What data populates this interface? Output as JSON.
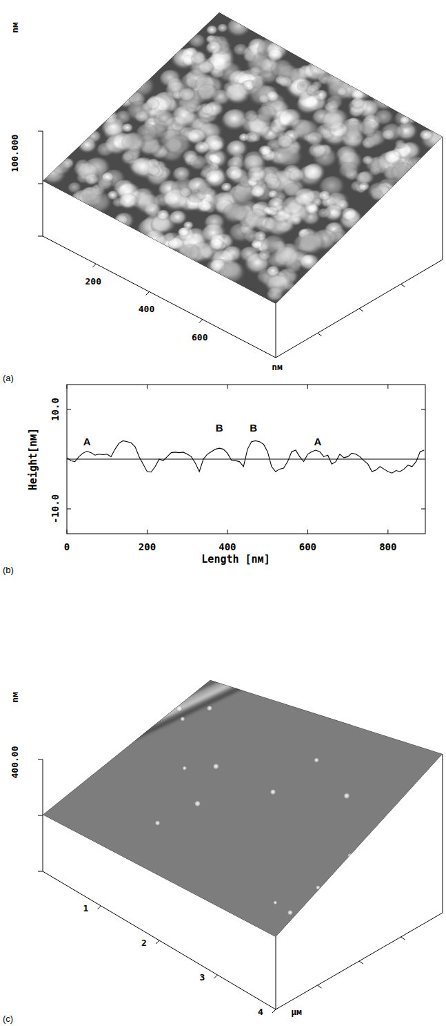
{
  "figure": {
    "panel_a": {
      "letter": "(a)",
      "z_label": "100.000",
      "z_unit": "nм",
      "x_unit": "nм",
      "x_range": [
        0,
        875
      ],
      "x_ticks": [
        200,
        400,
        600
      ]
    },
    "panel_b": {
      "letter": "(b)"
    },
    "panel_c": {
      "letter": "(c)",
      "z_label": "400.00",
      "z_unit": "nм",
      "x_unit": "μм",
      "x_range": [
        0,
        4
      ],
      "x_ticks": [
        1,
        2,
        3,
        4
      ]
    }
  },
  "chart_data": {
    "type": "line",
    "x_label": "Length [nм]",
    "y_label": "Height[nм]",
    "x": [
      0,
      10,
      20,
      30,
      40,
      50,
      60,
      70,
      80,
      90,
      100,
      110,
      120,
      130,
      140,
      150,
      160,
      170,
      180,
      190,
      200,
      210,
      220,
      230,
      240,
      250,
      260,
      270,
      280,
      290,
      300,
      310,
      320,
      330,
      340,
      350,
      360,
      370,
      380,
      390,
      400,
      410,
      420,
      430,
      440,
      450,
      460,
      470,
      480,
      490,
      500,
      510,
      520,
      530,
      540,
      550,
      560,
      570,
      580,
      590,
      600,
      610,
      620,
      630,
      640,
      650,
      660,
      670,
      680,
      690,
      700,
      710,
      720,
      730,
      740,
      750,
      760,
      770,
      780,
      790,
      800,
      810,
      820,
      830,
      840,
      850,
      860,
      870,
      880,
      890
    ],
    "values": [
      0.3,
      -0.3,
      -0.5,
      0.5,
      1.2,
      1.6,
      1.3,
      0.8,
      1.0,
      0.9,
      1.0,
      0.5,
      2.0,
      3.2,
      3.7,
      3.5,
      3.3,
      2.5,
      0.5,
      -1.0,
      -2.5,
      -2.6,
      -1.5,
      0.0,
      -0.3,
      0.5,
      1.3,
      1.4,
      1.3,
      1.4,
      1.0,
      0.5,
      -0.8,
      -2.5,
      0.0,
      1.0,
      1.5,
      2.0,
      2.2,
      2.0,
      1.2,
      -0.2,
      -0.3,
      -0.5,
      -1.5,
      2.0,
      3.5,
      3.7,
      3.5,
      3.0,
      1.5,
      -1.5,
      -2.5,
      -2.0,
      -1.8,
      -0.5,
      1.5,
      1.8,
      0.5,
      -0.5,
      1.0,
      1.5,
      1.8,
      1.5,
      0.5,
      0.8,
      -1.0,
      -0.5,
      1.0,
      0.3,
      0.5,
      1.2,
      1.0,
      0.5,
      -0.3,
      -1.0,
      -2.5,
      -2.2,
      -1.5,
      -2.0,
      -2.5,
      -2.8,
      -2.3,
      -2.5,
      -2.0,
      -1.2,
      -1.5,
      -0.5,
      1.5,
      1.8
    ],
    "color": "#000000",
    "xlim": [
      0,
      893
    ],
    "ylim": [
      -15,
      15
    ],
    "xticks": [
      0,
      200,
      400,
      600,
      800
    ],
    "yticks": [
      {
        "value": -10,
        "label": "-10.0"
      },
      {
        "value": 10,
        "label": "10.0"
      }
    ],
    "zero_line": 0,
    "annotations": [
      {
        "text": "A",
        "x": 50,
        "y": 2.8
      },
      {
        "text": "B",
        "x": 380,
        "y": 5.5
      },
      {
        "text": "B",
        "x": 465,
        "y": 5.5
      },
      {
        "text": "A",
        "x": 625,
        "y": 2.8
      }
    ]
  }
}
